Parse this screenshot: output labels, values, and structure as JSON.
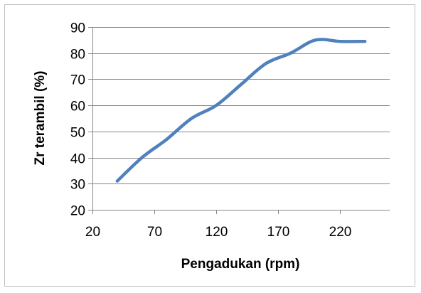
{
  "chart_data": {
    "type": "line",
    "xlabel": "Pengadukan (rpm)",
    "ylabel": "Zr  terambil (%)",
    "xlim": [
      20,
      260
    ],
    "ylim": [
      20,
      90
    ],
    "x_ticks": [
      20,
      70,
      120,
      170,
      220
    ],
    "y_ticks": [
      20,
      30,
      40,
      50,
      60,
      70,
      80,
      90
    ],
    "grid": "horizontal",
    "legend": "none",
    "line_color": "#4f81bd",
    "series": [
      {
        "x": [
          40,
          60,
          80,
          100,
          120,
          140,
          160,
          180,
          200,
          220,
          240
        ],
        "y": [
          31,
          40,
          47,
          55,
          60,
          68,
          76,
          80,
          85,
          84.5,
          84.5
        ]
      }
    ]
  }
}
